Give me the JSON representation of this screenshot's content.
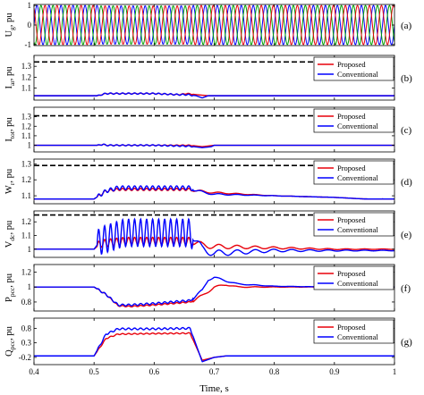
{
  "chart_data": {
    "type": "line",
    "x_label": "Time, s",
    "x_range": [
      0.4,
      1.0
    ],
    "x_ticks": [
      "0.4",
      "0.5",
      "0.6",
      "0.7",
      "0.8",
      "0.9",
      "1"
    ],
    "legend_names": [
      "Proposed",
      "Conventional"
    ],
    "legend_position": "top-right",
    "colors": {
      "proposed": "#e8000b",
      "conventional": "#0000ff",
      "phase_a": "#0000ff",
      "phase_b": "#00a000",
      "phase_c": "#e8000b",
      "limit": "#000000"
    },
    "panels": [
      {
        "tag": "(a)",
        "ylabel": "U",
        "ylabel_sub": "g",
        "ylabel_unit": ", pu",
        "ylim": [
          -1.05,
          1.05
        ],
        "yticks": [
          -1,
          0,
          1
        ],
        "ytick_labels": [
          "-1",
          "0",
          "1"
        ],
        "kind": "three_phase",
        "legend": false
      },
      {
        "tag": "(b)",
        "ylabel": "I",
        "ylabel_sub": "ar",
        "ylabel_unit": ", pu",
        "ylim": [
          0.99,
          1.4
        ],
        "yticks": [
          1.1,
          1.2,
          1.3
        ],
        "ytick_labels": [
          "1.1",
          "1.2",
          "1.3"
        ],
        "kind": "pair",
        "legend": true,
        "limit": 1.34,
        "series": [
          {
            "name": "Proposed",
            "points": [
              [
                0.4,
                1.03
              ],
              [
                0.508,
                1.03
              ],
              [
                0.512,
                1.04
              ],
              [
                0.52,
                1.05
              ],
              [
                0.6,
                1.05
              ],
              [
                0.64,
                1.04
              ],
              [
                0.655,
                1.05
              ],
              [
                0.67,
                1.04
              ],
              [
                0.69,
                1.03
              ],
              [
                0.7,
                1.03
              ],
              [
                1.0,
                1.03
              ]
            ]
          },
          {
            "name": "Conventional",
            "points": [
              [
                0.4,
                1.03
              ],
              [
                0.508,
                1.03
              ],
              [
                0.512,
                1.04
              ],
              [
                0.52,
                1.05
              ],
              [
                0.6,
                1.05
              ],
              [
                0.64,
                1.04
              ],
              [
                0.655,
                1.04
              ],
              [
                0.67,
                1.03
              ],
              [
                0.68,
                1.01
              ],
              [
                0.69,
                1.03
              ],
              [
                0.7,
                1.03
              ],
              [
                1.0,
                1.03
              ]
            ]
          }
        ]
      },
      {
        "tag": "(c)",
        "ylabel": "I",
        "ylabel_sub": "tot",
        "ylabel_unit": ", pu",
        "ylim": [
          0.93,
          1.4
        ],
        "yticks": [
          1.0,
          1.1,
          1.2,
          1.3
        ],
        "ytick_labels": [
          "1",
          "1.1",
          "1.2",
          "1.3"
        ],
        "kind": "pair",
        "legend": true,
        "limit": 1.31,
        "series": [
          {
            "name": "Proposed",
            "points": [
              [
                0.4,
                1.0
              ],
              [
                0.508,
                1.0
              ],
              [
                0.515,
                1.01
              ],
              [
                0.52,
                1.0
              ],
              [
                0.6,
                1.0
              ],
              [
                0.66,
                1.0
              ],
              [
                0.68,
                0.985
              ],
              [
                0.7,
                1.0
              ],
              [
                1.0,
                1.0
              ]
            ]
          },
          {
            "name": "Conventional",
            "points": [
              [
                0.4,
                1.0
              ],
              [
                0.508,
                1.0
              ],
              [
                0.515,
                1.01
              ],
              [
                0.52,
                1.0
              ],
              [
                0.6,
                1.0
              ],
              [
                0.66,
                0.99
              ],
              [
                0.68,
                0.975
              ],
              [
                0.695,
                0.985
              ],
              [
                0.7,
                1.0
              ],
              [
                1.0,
                1.0
              ]
            ]
          }
        ]
      },
      {
        "tag": "(d)",
        "ylabel": "W",
        "ylabel_sub": "r",
        "ylabel_unit": ", pu",
        "ylim": [
          1.05,
          1.33
        ],
        "yticks": [
          1.1,
          1.2,
          1.3
        ],
        "ytick_labels": [
          "1.1",
          "1.2",
          "1.3"
        ],
        "kind": "pair",
        "legend": true,
        "limit": 1.29,
        "series": [
          {
            "name": "Proposed",
            "points": [
              [
                0.4,
                1.08
              ],
              [
                0.5,
                1.08
              ],
              [
                0.52,
                1.13
              ],
              [
                0.54,
                1.14
              ],
              [
                0.6,
                1.14
              ],
              [
                0.66,
                1.14
              ],
              [
                0.67,
                1.13
              ],
              [
                0.7,
                1.12
              ],
              [
                0.8,
                1.1
              ],
              [
                0.9,
                1.09
              ],
              [
                0.95,
                1.08
              ],
              [
                1.0,
                1.08
              ]
            ]
          },
          {
            "name": "Conventional",
            "points": [
              [
                0.4,
                1.08
              ],
              [
                0.5,
                1.08
              ],
              [
                0.52,
                1.13
              ],
              [
                0.54,
                1.15
              ],
              [
                0.6,
                1.15
              ],
              [
                0.66,
                1.15
              ],
              [
                0.67,
                1.13
              ],
              [
                0.7,
                1.11
              ],
              [
                0.8,
                1.1
              ],
              [
                0.9,
                1.09
              ],
              [
                0.95,
                1.08
              ],
              [
                1.0,
                1.08
              ]
            ]
          }
        ]
      },
      {
        "tag": "(e)",
        "ylabel": "V",
        "ylabel_sub": "dc",
        "ylabel_unit": ", pu",
        "ylim": [
          0.94,
          1.28
        ],
        "yticks": [
          1.0,
          1.1,
          1.2
        ],
        "ytick_labels": [
          "1",
          "1.1",
          "1.2"
        ],
        "kind": "pair",
        "legend": true,
        "limit": 1.25,
        "series": [
          {
            "name": "Proposed",
            "points": [
              [
                0.4,
                1.0
              ],
              [
                0.5,
                1.0
              ],
              [
                0.51,
                1.04
              ],
              [
                0.55,
                1.06
              ],
              [
                0.6,
                1.06
              ],
              [
                0.66,
                1.06
              ],
              [
                0.68,
                1.03
              ],
              [
                0.7,
                1.02
              ],
              [
                0.8,
                1.01
              ],
              [
                0.9,
                1.0
              ],
              [
                1.0,
                1.0
              ]
            ]
          },
          {
            "name": "Conventional",
            "points": [
              [
                0.4,
                1.0
              ],
              [
                0.5,
                1.0
              ],
              [
                0.51,
                1.06
              ],
              [
                0.55,
                1.12
              ],
              [
                0.6,
                1.12
              ],
              [
                0.66,
                1.12
              ],
              [
                0.68,
                1.0
              ],
              [
                0.7,
                0.97
              ],
              [
                0.8,
                0.99
              ],
              [
                0.9,
                0.99
              ],
              [
                1.0,
                0.99
              ]
            ]
          }
        ]
      },
      {
        "tag": "(f)",
        "ylabel": "P",
        "ylabel_sub": "pcc",
        "ylabel_unit": ", pu",
        "ylim": [
          0.68,
          1.3
        ],
        "yticks": [
          0.8,
          1.0,
          1.2
        ],
        "ytick_labels": [
          "0.8",
          "1",
          "1.2"
        ],
        "kind": "pair",
        "legend": true,
        "series": [
          {
            "name": "Proposed",
            "points": [
              [
                0.4,
                1.0
              ],
              [
                0.5,
                1.0
              ],
              [
                0.52,
                0.9
              ],
              [
                0.54,
                0.75
              ],
              [
                0.56,
                0.74
              ],
              [
                0.6,
                0.76
              ],
              [
                0.66,
                0.8
              ],
              [
                0.68,
                0.88
              ],
              [
                0.7,
                1.0
              ],
              [
                0.72,
                1.03
              ],
              [
                0.74,
                1.0
              ],
              [
                0.8,
                1.0
              ],
              [
                1.0,
                1.0
              ]
            ]
          },
          {
            "name": "Conventional",
            "points": [
              [
                0.4,
                1.0
              ],
              [
                0.5,
                1.0
              ],
              [
                0.52,
                0.9
              ],
              [
                0.54,
                0.76
              ],
              [
                0.56,
                0.76
              ],
              [
                0.6,
                0.78
              ],
              [
                0.66,
                0.82
              ],
              [
                0.68,
                0.95
              ],
              [
                0.69,
                1.1
              ],
              [
                0.7,
                1.13
              ],
              [
                0.72,
                1.08
              ],
              [
                0.74,
                1.04
              ],
              [
                0.8,
                1.01
              ],
              [
                0.9,
                1.0
              ],
              [
                1.0,
                1.0
              ]
            ]
          }
        ]
      },
      {
        "tag": "(g)",
        "ylabel": "Q",
        "ylabel_sub": "pcc",
        "ylabel_unit": ", pu",
        "ylim": [
          -0.45,
          1.15
        ],
        "yticks": [
          -0.2,
          0.3,
          0.8
        ],
        "ytick_labels": [
          "-0.2",
          "0.3",
          "0.8"
        ],
        "kind": "pair",
        "legend": true,
        "series": [
          {
            "name": "Proposed",
            "points": [
              [
                0.4,
                -0.15
              ],
              [
                0.5,
                -0.15
              ],
              [
                0.52,
                0.45
              ],
              [
                0.54,
                0.6
              ],
              [
                0.6,
                0.62
              ],
              [
                0.66,
                0.63
              ],
              [
                0.68,
                -0.3
              ],
              [
                0.7,
                -0.2
              ],
              [
                0.72,
                -0.15
              ],
              [
                1.0,
                -0.15
              ]
            ]
          },
          {
            "name": "Conventional",
            "points": [
              [
                0.4,
                -0.15
              ],
              [
                0.5,
                -0.15
              ],
              [
                0.52,
                0.6
              ],
              [
                0.54,
                0.78
              ],
              [
                0.6,
                0.78
              ],
              [
                0.66,
                0.8
              ],
              [
                0.68,
                -0.35
              ],
              [
                0.7,
                -0.2
              ],
              [
                0.72,
                -0.15
              ],
              [
                1.0,
                -0.15
              ]
            ]
          }
        ]
      }
    ]
  }
}
